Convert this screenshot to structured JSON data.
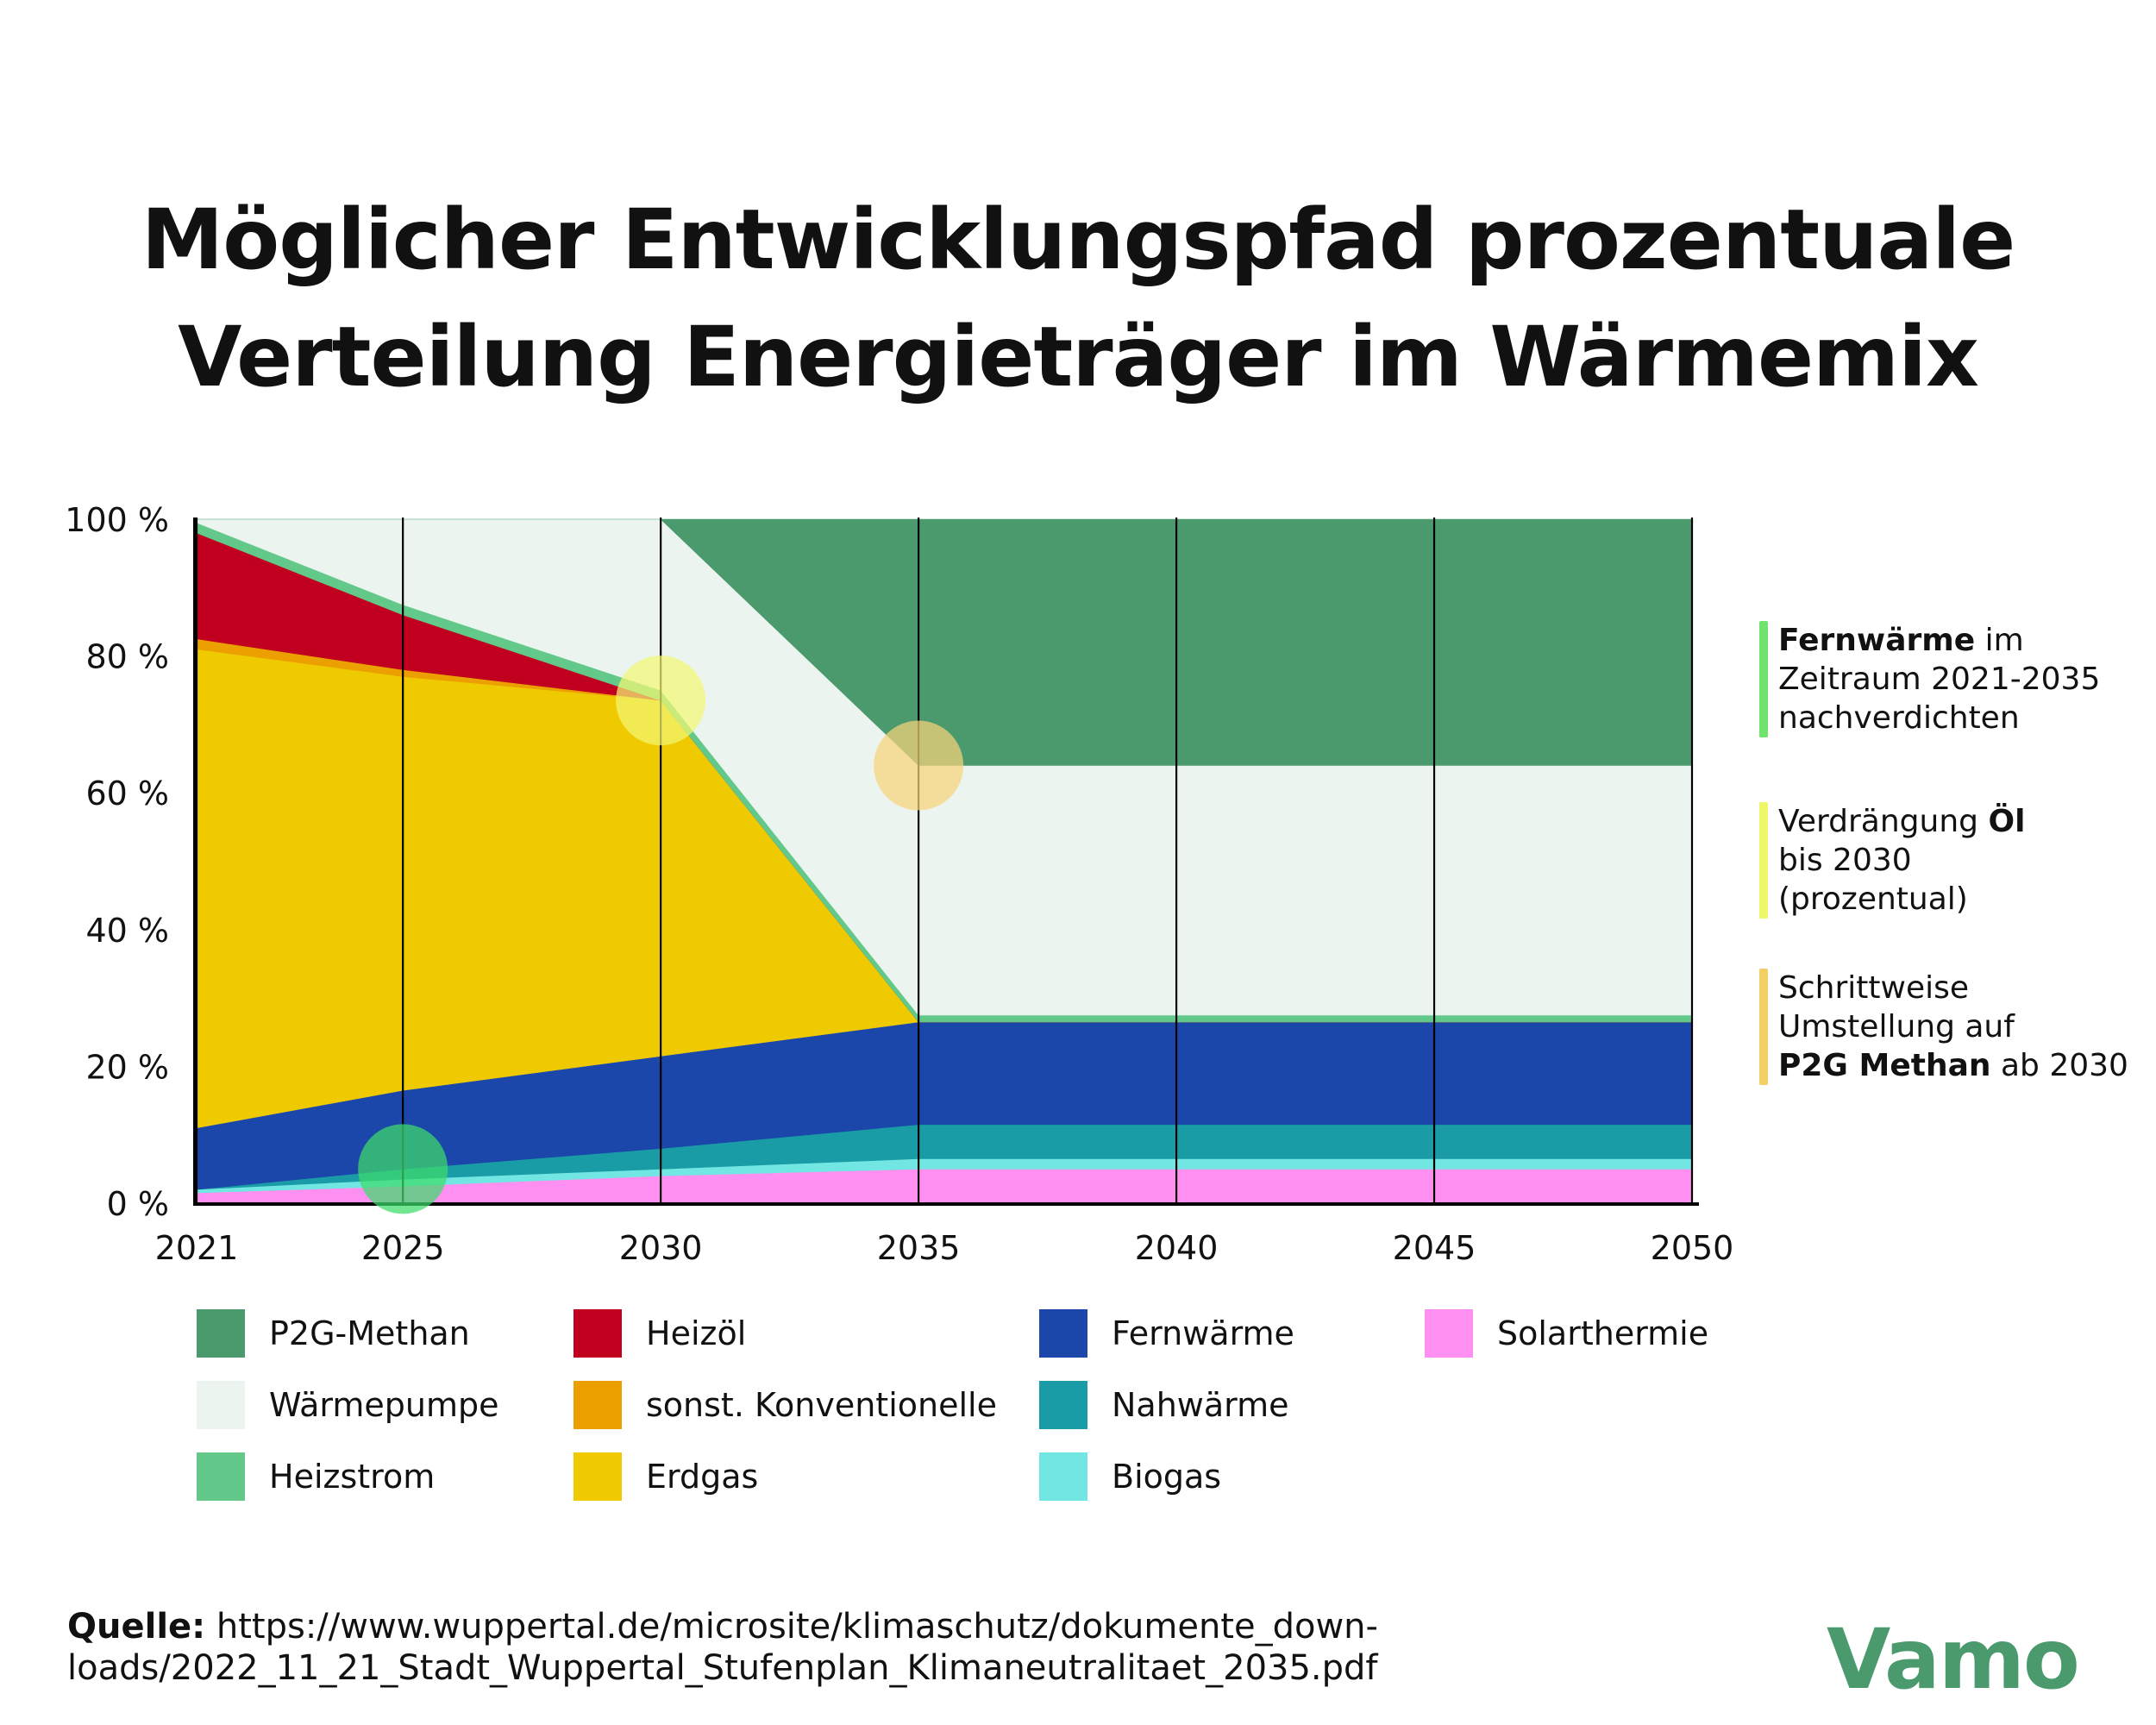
{
  "title_lines": [
    "Möglicher Entwicklungspfad prozentuale",
    "Verteilung Energieträger im Wärmemix"
  ],
  "chart_data": {
    "type": "area",
    "stacked": true,
    "x": [
      2021,
      2025,
      2030,
      2035,
      2040,
      2045,
      2050
    ],
    "x_tick_labels": [
      "2021",
      "2025",
      "2030",
      "2035",
      "2040",
      "2045",
      "2050"
    ],
    "y_tick_labels": [
      "100 %",
      "80 %",
      "60 %",
      "40 %",
      "20 %",
      "0 %"
    ],
    "ylim": [
      0,
      100
    ],
    "stack_order": [
      "Solarthermie",
      "Biogas",
      "Nahwärme",
      "Fernwärme",
      "Erdgas",
      "sonst. Konventionelle",
      "Heizöl",
      "Heizstrom",
      "Wärmepumpe",
      "P2G-Methan"
    ],
    "series": [
      {
        "name": "Solarthermie",
        "color": "#ff8ff0",
        "points": [
          [
            2021,
            1.5
          ],
          [
            2025,
            2.5
          ],
          [
            2030,
            4
          ],
          [
            2035,
            5
          ],
          [
            2050,
            5
          ]
        ]
      },
      {
        "name": "Biogas",
        "color": "#72e6e2",
        "points": [
          [
            2021,
            0.5
          ],
          [
            2025,
            1
          ],
          [
            2030,
            1
          ],
          [
            2035,
            1.5
          ],
          [
            2050,
            1.5
          ]
        ]
      },
      {
        "name": "Nahwärme",
        "color": "#1a9ca6",
        "points": [
          [
            2021,
            0
          ],
          [
            2025,
            1.5
          ],
          [
            2030,
            3
          ],
          [
            2035,
            5
          ],
          [
            2050,
            5
          ]
        ]
      },
      {
        "name": "Fernwärme",
        "color": "#1a47a9",
        "points": [
          [
            2021,
            9
          ],
          [
            2025,
            11.5
          ],
          [
            2030,
            13.5
          ],
          [
            2035,
            15
          ],
          [
            2050,
            15
          ]
        ]
      },
      {
        "name": "Erdgas",
        "color": "#efca00",
        "points": [
          [
            2021,
            70
          ],
          [
            2025,
            60.5
          ],
          [
            2030,
            52
          ],
          [
            2035,
            0
          ],
          [
            2050,
            0
          ]
        ]
      },
      {
        "name": "sonst. Konventionelle",
        "color": "#eba000",
        "points": [
          [
            2021,
            1.5
          ],
          [
            2025,
            1
          ],
          [
            2030,
            0
          ],
          [
            2035,
            0
          ],
          [
            2050,
            0
          ]
        ]
      },
      {
        "name": "Heizöl",
        "color": "#c1001f",
        "points": [
          [
            2021,
            15.5
          ],
          [
            2025,
            8
          ],
          [
            2030,
            0
          ],
          [
            2035,
            0
          ],
          [
            2050,
            0
          ]
        ]
      },
      {
        "name": "Heizstrom",
        "color": "#62c98a",
        "points": [
          [
            2021,
            1.5
          ],
          [
            2025,
            1.5
          ],
          [
            2030,
            1.5
          ],
          [
            2035,
            1
          ],
          [
            2050,
            1
          ]
        ]
      },
      {
        "name": "Wärmepumpe",
        "color": "#ecf4ef",
        "points": [
          [
            2021,
            0.5
          ],
          [
            2025,
            12.5
          ],
          [
            2030,
            25
          ],
          [
            2035,
            36.5
          ],
          [
            2050,
            36.5
          ]
        ]
      },
      {
        "name": "P2G-Methan",
        "color": "#4a9a6e",
        "points": [
          [
            2021,
            0
          ],
          [
            2025,
            0
          ],
          [
            2030,
            0
          ],
          [
            2035,
            36
          ],
          [
            2050,
            36
          ]
        ]
      }
    ],
    "highlights": [
      {
        "x": 2025,
        "y": 5,
        "color": "#3ddc6b"
      },
      {
        "x": 2030,
        "y": 73.5,
        "color": "#f2f773"
      },
      {
        "x": 2035,
        "y": 64,
        "color": "#f6d37a"
      }
    ]
  },
  "legend": [
    {
      "label": "P2G-Methan",
      "color": "#4a9a6e"
    },
    {
      "label": "Wärmepumpe",
      "color": "#ecf4ef"
    },
    {
      "label": "Heizstrom",
      "color": "#62c98a"
    },
    {
      "label": "Heizöl",
      "color": "#c1001f"
    },
    {
      "label": "sonst. Konventionelle",
      "color": "#eba000"
    },
    {
      "label": "Erdgas",
      "color": "#efca00"
    },
    {
      "label": "Fernwärme",
      "color": "#1a47a9"
    },
    {
      "label": "Nahwärme",
      "color": "#1a9ca6"
    },
    {
      "label": "Biogas",
      "color": "#72e6e2"
    },
    {
      "label": "Solarthermie",
      "color": "#ff8ff0"
    }
  ],
  "notes": [
    {
      "color": "#6fe36b",
      "lines": [
        [
          {
            "t": "Fernwärme",
            "b": true
          },
          {
            "t": " im",
            "b": false
          }
        ],
        [
          {
            "t": "Zeitraum 2021-2035",
            "b": false
          }
        ],
        [
          {
            "t": "nachverdichten",
            "b": false
          }
        ]
      ]
    },
    {
      "color": "#eef86a",
      "lines": [
        [
          {
            "t": "Verdrängung ",
            "b": false
          },
          {
            "t": "Öl",
            "b": true
          }
        ],
        [
          {
            "t": "bis 2030",
            "b": false
          }
        ],
        [
          {
            "t": "(prozentual)",
            "b": false
          }
        ]
      ]
    },
    {
      "color": "#f6cf63",
      "lines": [
        [
          {
            "t": "Schrittweise",
            "b": false
          }
        ],
        [
          {
            "t": "Umstellung auf",
            "b": false
          }
        ],
        [
          {
            "t": "P2G Methan",
            "b": true
          },
          {
            "t": " ab 2030",
            "b": false
          }
        ]
      ]
    }
  ],
  "source": {
    "label": "Quelle:",
    "lines": [
      " https://www.wuppertal.de/microsite/klimaschutz/dokumente_down-",
      "loads/2022_11_21_Stadt_Wuppertal_Stufenplan_Klimaneutralitaet_2035.pdf"
    ]
  },
  "logo_text": "Vamo"
}
